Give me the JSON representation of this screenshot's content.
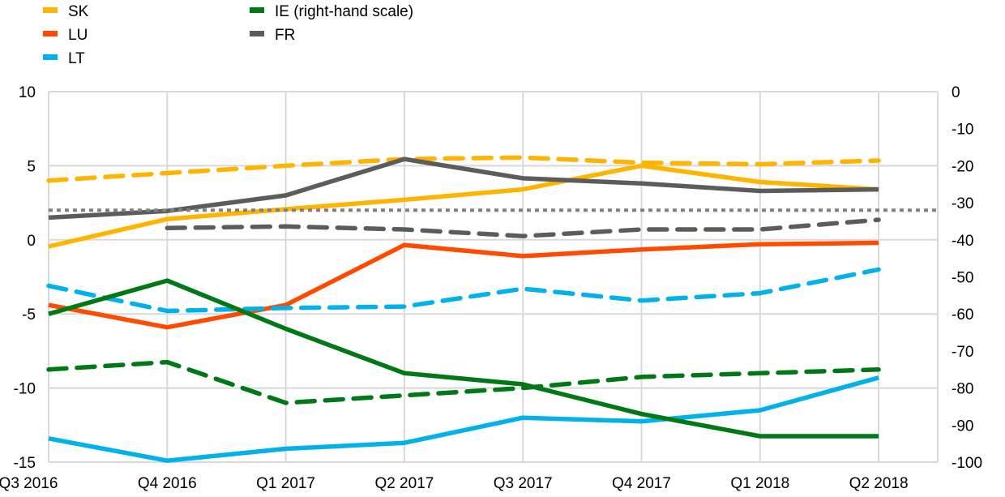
{
  "chart_data": {
    "type": "line",
    "title": "",
    "categories": [
      "Q3 2016",
      "Q4 2016",
      "Q1 2017",
      "Q2 2017",
      "Q3 2017",
      "Q4 2017",
      "Q1 2018",
      "Q2 2018"
    ],
    "left_axis": {
      "ylim": [
        -15,
        10
      ],
      "ticks": [
        "10",
        "5",
        "0",
        "-5",
        "-10",
        "-15"
      ],
      "tick_values": [
        10,
        5,
        0,
        -5,
        -10,
        -15
      ]
    },
    "right_axis": {
      "ylim": [
        -100,
        0
      ],
      "ticks": [
        "0",
        "-10",
        "-20",
        "-30",
        "-40",
        "-50",
        "-60",
        "-70",
        "-80",
        "-90",
        "-100"
      ],
      "tick_values": [
        0,
        -10,
        -20,
        -30,
        -40,
        -50,
        -60,
        -70,
        -80,
        -90,
        -100
      ]
    },
    "grid": true,
    "legend": {
      "placement": "top-left",
      "entries": [
        {
          "label": "SK",
          "color": "#FFB400"
        },
        {
          "label": "LU",
          "color": "#FF4B00"
        },
        {
          "label": "LT",
          "color": "#00B1EA"
        },
        {
          "label": "IE (right-hand scale)",
          "color": "#007816"
        },
        {
          "label": "FR",
          "color": "#5C5C5C"
        }
      ]
    },
    "series": [
      {
        "name": "SK",
        "style": "solid",
        "axis": "left",
        "color": "#FFB400",
        "values": [
          -0.45,
          1.4,
          2.07,
          2.7,
          3.4,
          5.0,
          3.9,
          3.4
        ]
      },
      {
        "name": "SK",
        "style": "dashed",
        "axis": "left",
        "color": "#FFB400",
        "values": [
          4.0,
          4.5,
          5.0,
          5.45,
          5.55,
          5.2,
          5.1,
          5.35
        ]
      },
      {
        "name": "LU",
        "style": "solid",
        "axis": "left",
        "color": "#FF4B00",
        "values": [
          -4.4,
          -5.9,
          -4.4,
          -0.35,
          -1.1,
          -0.65,
          -0.3,
          -0.2
        ]
      },
      {
        "name": "LT",
        "style": "solid",
        "axis": "left",
        "color": "#00B1EA",
        "values": [
          -13.4,
          -14.9,
          -14.1,
          -13.7,
          -12.0,
          -12.25,
          -11.5,
          -9.3
        ]
      },
      {
        "name": "LT",
        "style": "dashed",
        "axis": "left",
        "color": "#00B1EA",
        "values": [
          -3.1,
          -4.8,
          -4.6,
          -4.5,
          -3.3,
          -4.1,
          -3.6,
          -2.0
        ]
      },
      {
        "name": "IE (right-hand scale)",
        "style": "solid",
        "axis": "right",
        "color": "#007816",
        "values": [
          -60,
          -51,
          -64,
          -76,
          -79,
          -87,
          -93,
          -93
        ]
      },
      {
        "name": "IE (right-hand scale)",
        "style": "dashed",
        "axis": "right",
        "color": "#007816",
        "values": [
          -75,
          -73,
          -84,
          -82,
          -80,
          -77,
          -76,
          -75
        ]
      },
      {
        "name": "FR",
        "style": "solid",
        "axis": "left",
        "color": "#5C5C5C",
        "values": [
          1.5,
          1.95,
          3.0,
          5.45,
          4.15,
          3.8,
          3.3,
          3.4
        ]
      },
      {
        "name": "FR",
        "style": "dashed",
        "axis": "left",
        "color": "#5C5C5C",
        "values": [
          null,
          0.8,
          0.9,
          0.7,
          0.25,
          0.7,
          0.7,
          1.35
        ]
      },
      {
        "name": "reference",
        "style": "dotted",
        "axis": "left",
        "color": "#808080",
        "values": [
          2.0,
          2.0,
          2.0,
          2.0,
          2.0,
          2.0,
          2.0,
          2.0
        ]
      }
    ]
  }
}
